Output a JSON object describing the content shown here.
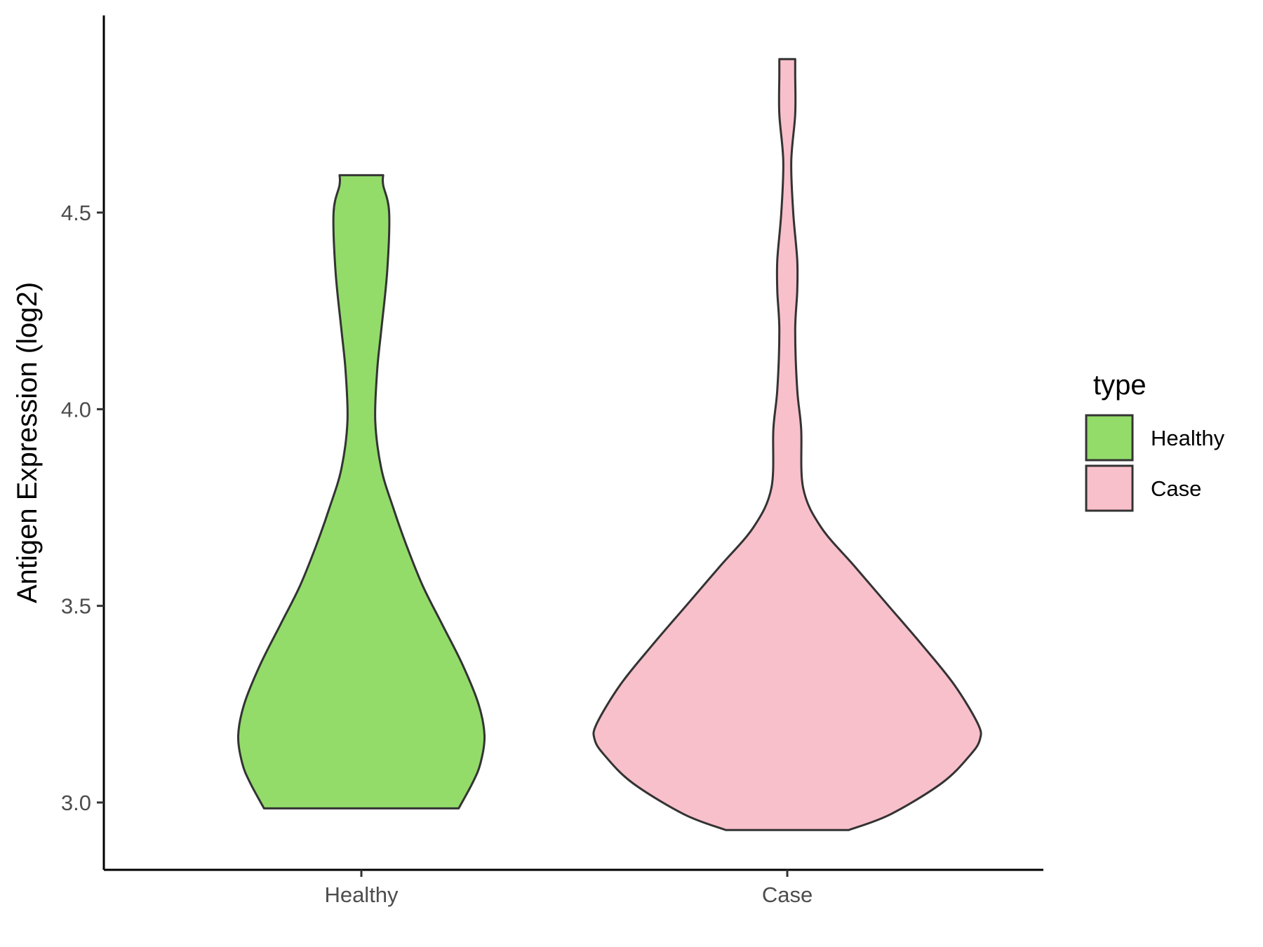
{
  "chart_data": {
    "type": "violin",
    "title": "",
    "xlabel": "",
    "ylabel": "Antigen Expression (log2)",
    "categories": [
      "Healthy",
      "Case"
    ],
    "ylim": [
      2.83,
      4.98
    ],
    "yticks": [
      "3.0",
      "3.5",
      "4.0",
      "4.5"
    ],
    "ytick_values": [
      3.0,
      3.5,
      4.0,
      4.5
    ],
    "grid": false,
    "legend": {
      "title": "type",
      "position": "right",
      "entries": [
        "Healthy",
        "Case"
      ]
    },
    "colors": {
      "Healthy": "#93dc6a",
      "Case": "#f8c0cb",
      "outline": "#333333",
      "axis": "#000000"
    },
    "series": [
      {
        "name": "Healthy",
        "min": 2.985,
        "max": 4.595,
        "density_profile": [
          [
            2.985,
            0.49
          ],
          [
            3.05,
            0.56
          ],
          [
            3.1,
            0.6
          ],
          [
            3.17,
            0.62
          ],
          [
            3.25,
            0.59
          ],
          [
            3.35,
            0.51
          ],
          [
            3.45,
            0.41
          ],
          [
            3.55,
            0.31
          ],
          [
            3.65,
            0.23
          ],
          [
            3.75,
            0.16
          ],
          [
            3.85,
            0.1
          ],
          [
            3.97,
            0.07
          ],
          [
            4.1,
            0.08
          ],
          [
            4.2,
            0.1
          ],
          [
            4.35,
            0.13
          ],
          [
            4.5,
            0.14
          ],
          [
            4.57,
            0.11
          ],
          [
            4.595,
            0.11
          ]
        ]
      },
      {
        "name": "Case",
        "min": 2.93,
        "max": 4.89,
        "density_profile": [
          [
            2.93,
            0.31
          ],
          [
            2.97,
            0.52
          ],
          [
            3.05,
            0.78
          ],
          [
            3.12,
            0.92
          ],
          [
            3.16,
            0.97
          ],
          [
            3.2,
            0.96
          ],
          [
            3.3,
            0.84
          ],
          [
            3.4,
            0.68
          ],
          [
            3.5,
            0.51
          ],
          [
            3.6,
            0.34
          ],
          [
            3.7,
            0.17
          ],
          [
            3.8,
            0.08
          ],
          [
            3.95,
            0.07
          ],
          [
            4.05,
            0.05
          ],
          [
            4.2,
            0.04
          ],
          [
            4.3,
            0.05
          ],
          [
            4.38,
            0.05
          ],
          [
            4.5,
            0.03
          ],
          [
            4.63,
            0.02
          ],
          [
            4.75,
            0.04
          ],
          [
            4.85,
            0.04
          ],
          [
            4.89,
            0.04
          ]
        ]
      }
    ]
  }
}
